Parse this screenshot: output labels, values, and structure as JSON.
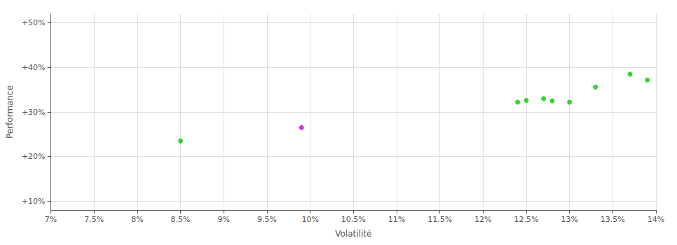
{
  "chart_data": {
    "type": "scatter",
    "xlabel": "Volatilité",
    "ylabel": "Performance",
    "xlim": [
      0.07,
      0.14
    ],
    "ylim": [
      0.08,
      0.52
    ],
    "xticks": [
      {
        "value": 0.07,
        "label": "7%"
      },
      {
        "value": 0.075,
        "label": "7.5%"
      },
      {
        "value": 0.08,
        "label": "8%"
      },
      {
        "value": 0.085,
        "label": "8.5%"
      },
      {
        "value": 0.09,
        "label": "9%"
      },
      {
        "value": 0.095,
        "label": "9.5%"
      },
      {
        "value": 0.1,
        "label": "10%"
      },
      {
        "value": 0.105,
        "label": "10.5%"
      },
      {
        "value": 0.11,
        "label": "11%"
      },
      {
        "value": 0.115,
        "label": "11.5%"
      },
      {
        "value": 0.12,
        "label": "12%"
      },
      {
        "value": 0.125,
        "label": "12.5%"
      },
      {
        "value": 0.13,
        "label": "13%"
      },
      {
        "value": 0.135,
        "label": "13.5%"
      },
      {
        "value": 0.14,
        "label": "14%"
      }
    ],
    "yticks": [
      {
        "value": 0.1,
        "label": "+10%"
      },
      {
        "value": 0.2,
        "label": "+20%"
      },
      {
        "value": 0.3,
        "label": "+30%"
      },
      {
        "value": 0.4,
        "label": "+40%"
      },
      {
        "value": 0.5,
        "label": "+50%"
      }
    ],
    "grid": true,
    "series": [
      {
        "color": "#00cc00",
        "values": [
          [
            0.085,
            0.235
          ],
          [
            0.124,
            0.322
          ],
          [
            0.125,
            0.326
          ],
          [
            0.127,
            0.33
          ],
          [
            0.128,
            0.325
          ],
          [
            0.13,
            0.322
          ],
          [
            0.133,
            0.356
          ],
          [
            0.137,
            0.385
          ],
          [
            0.139,
            0.372
          ]
        ]
      },
      {
        "color": "#cc00cc",
        "values": [
          [
            0.099,
            0.265
          ]
        ]
      }
    ]
  }
}
